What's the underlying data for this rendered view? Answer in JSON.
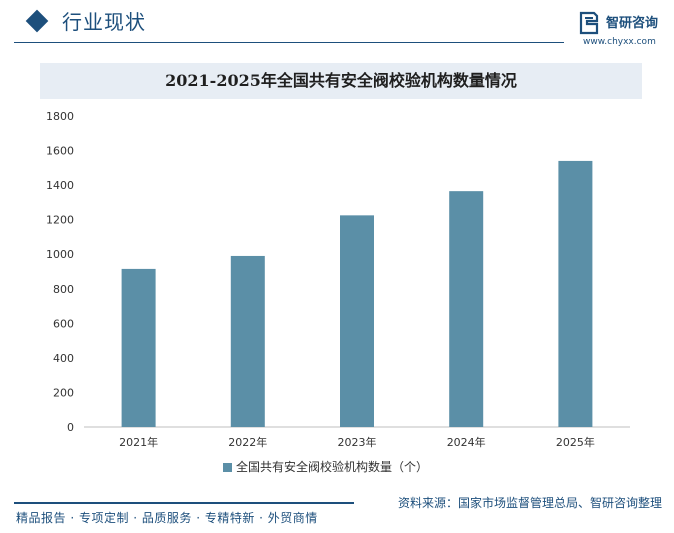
{
  "header": {
    "section_title": "行业现状",
    "logo_name": "智研咨询",
    "logo_url": "www.chyxx.com"
  },
  "colors": {
    "brand": "#1d4f7c",
    "bar": "#5b8fa7",
    "title_band": "#e7edf4"
  },
  "chart_data": {
    "type": "bar",
    "title": "2021-2025年全国共有安全阀校验机构数量情况",
    "categories": [
      "2021年",
      "2022年",
      "2023年",
      "2024年",
      "2025年"
    ],
    "series": [
      {
        "name": "全国共有安全阀校验机构数量（个）",
        "values": [
          915,
          990,
          1225,
          1365,
          1540
        ]
      }
    ],
    "ylim": [
      0,
      1800
    ],
    "yticks": [
      0,
      200,
      400,
      600,
      800,
      1000,
      1200,
      1400,
      1600,
      1800
    ],
    "grid": false,
    "legend_position": "bottom"
  },
  "footer": {
    "services": "精品报告 · 专项定制 · 品质服务 · 专精特新 · 外贸商情",
    "source": "资料来源：国家市场监督管理总局、智研咨询整理"
  }
}
